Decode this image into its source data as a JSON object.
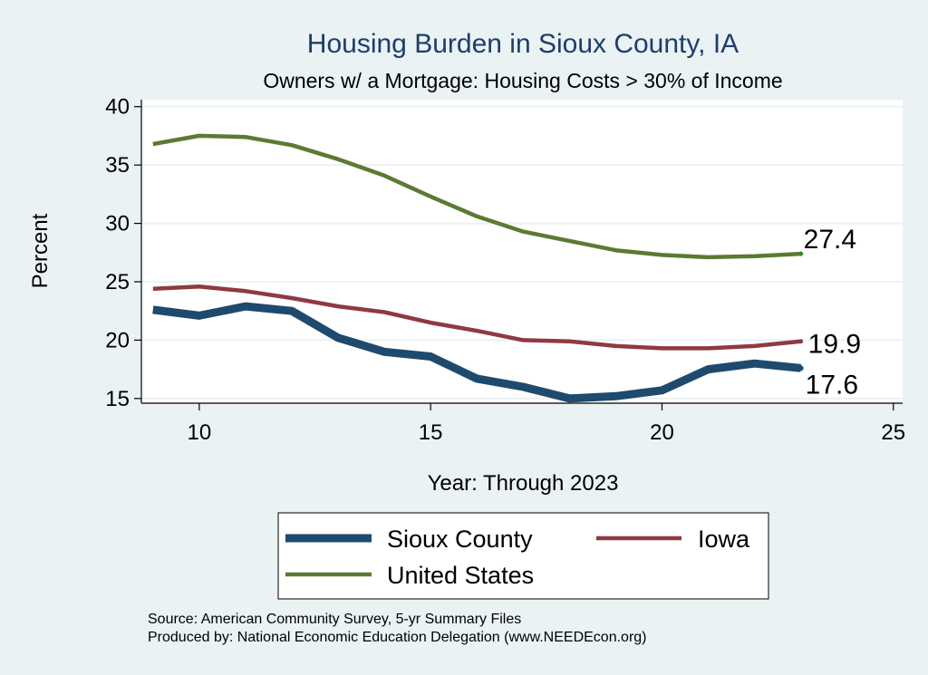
{
  "chart_data": {
    "type": "line",
    "title": "Housing Burden in Sioux County, IA",
    "subtitle": "Owners w/ a Mortgage: Housing Costs > 30% of Income",
    "xlabel": "Year: Through 2023",
    "ylabel": "Percent",
    "xlim": [
      8.75,
      25.2
    ],
    "ylim": [
      14.6,
      40.6
    ],
    "x_ticks": [
      10,
      15,
      20,
      25
    ],
    "y_ticks": [
      15,
      20,
      25,
      30,
      35,
      40
    ],
    "grid": true,
    "x": [
      9,
      10,
      11,
      12,
      13,
      14,
      15,
      16,
      17,
      18,
      19,
      20,
      21,
      22,
      23
    ],
    "series": [
      {
        "name": "Sioux County",
        "color": "#1e4a6e",
        "values": [
          22.6,
          22.1,
          22.9,
          22.5,
          20.2,
          19.0,
          18.6,
          16.7,
          16.0,
          15.0,
          15.2,
          15.7,
          17.5,
          18.0,
          17.6
        ],
        "end_label": "17.6"
      },
      {
        "name": "Iowa",
        "color": "#8f3a40",
        "values": [
          24.4,
          24.6,
          24.2,
          23.6,
          22.9,
          22.4,
          21.5,
          20.8,
          20.0,
          19.9,
          19.5,
          19.3,
          19.3,
          19.5,
          19.9
        ],
        "end_label": "19.9"
      },
      {
        "name": "United States",
        "color": "#5b7a33",
        "values": [
          36.8,
          37.5,
          37.4,
          36.7,
          35.5,
          34.1,
          32.3,
          30.6,
          29.3,
          28.5,
          27.7,
          27.3,
          27.1,
          27.2,
          27.4
        ],
        "end_label": "27.4"
      }
    ],
    "legend_position": "bottom",
    "notes": [
      "Source: American Community Survey, 5-yr Summary Files",
      "Produced by: National Economic Education Delegation (www.NEEDEcon.org)"
    ]
  }
}
